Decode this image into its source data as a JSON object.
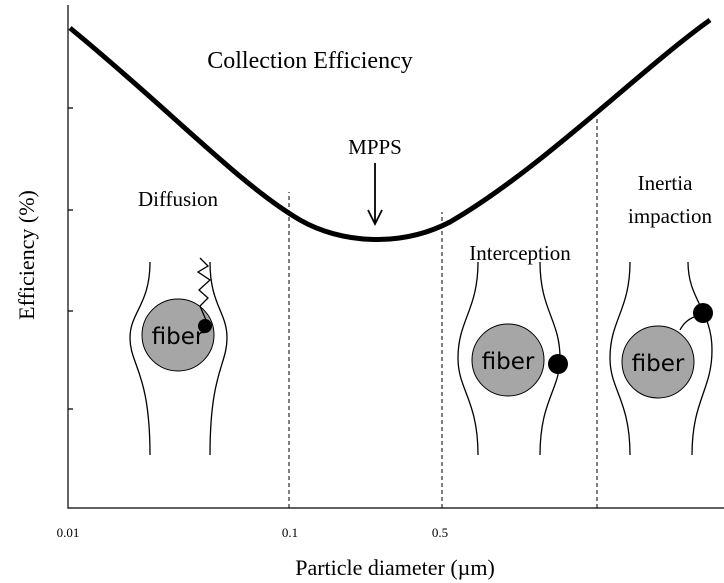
{
  "title": "Collection Efficiency",
  "annotations": {
    "mpps": "MPPS",
    "diffusion": "Diffusion",
    "interception": "Interception",
    "inertia_1": "Inertia",
    "inertia_2": "impaction"
  },
  "axes": {
    "y_label": "Efficiency (%)",
    "x_label": "Particle diameter (µm)",
    "x_ticks": [
      "0.01",
      "0.1",
      "0.5"
    ]
  },
  "fibers": [
    "fiber",
    "fiber",
    "fiber"
  ]
}
